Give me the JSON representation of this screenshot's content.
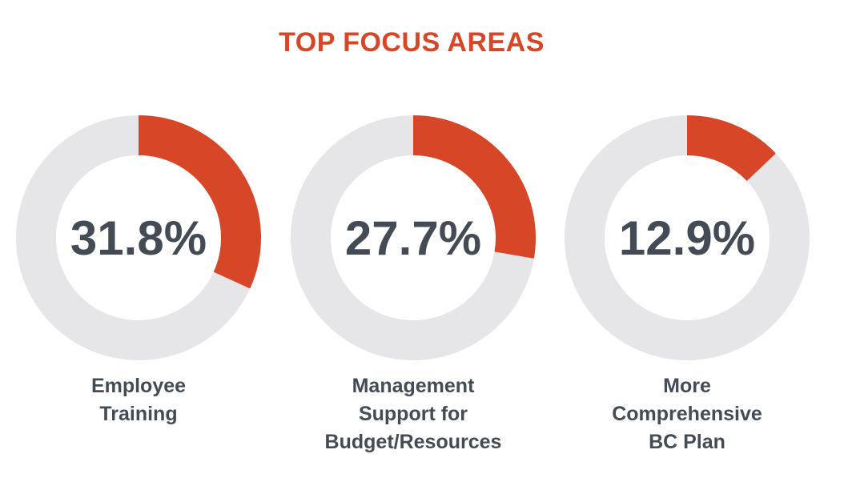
{
  "colors": {
    "accent": "#D84628",
    "track": "#E6E6E8",
    "text": "#444B55"
  },
  "chart_data": {
    "type": "pie",
    "title": "TOP FOCUS AREAS",
    "items": [
      {
        "value": 31.8,
        "value_label": "31.8%",
        "label_lines": [
          "Employee",
          "Training"
        ]
      },
      {
        "value": 27.7,
        "value_label": "27.7%",
        "label_lines": [
          "Management",
          "Support for",
          "Budget/Resources"
        ]
      },
      {
        "value": 12.9,
        "value_label": "12.9%",
        "label_lines": [
          "More",
          "Comprehensive",
          "BC Plan"
        ]
      }
    ]
  }
}
